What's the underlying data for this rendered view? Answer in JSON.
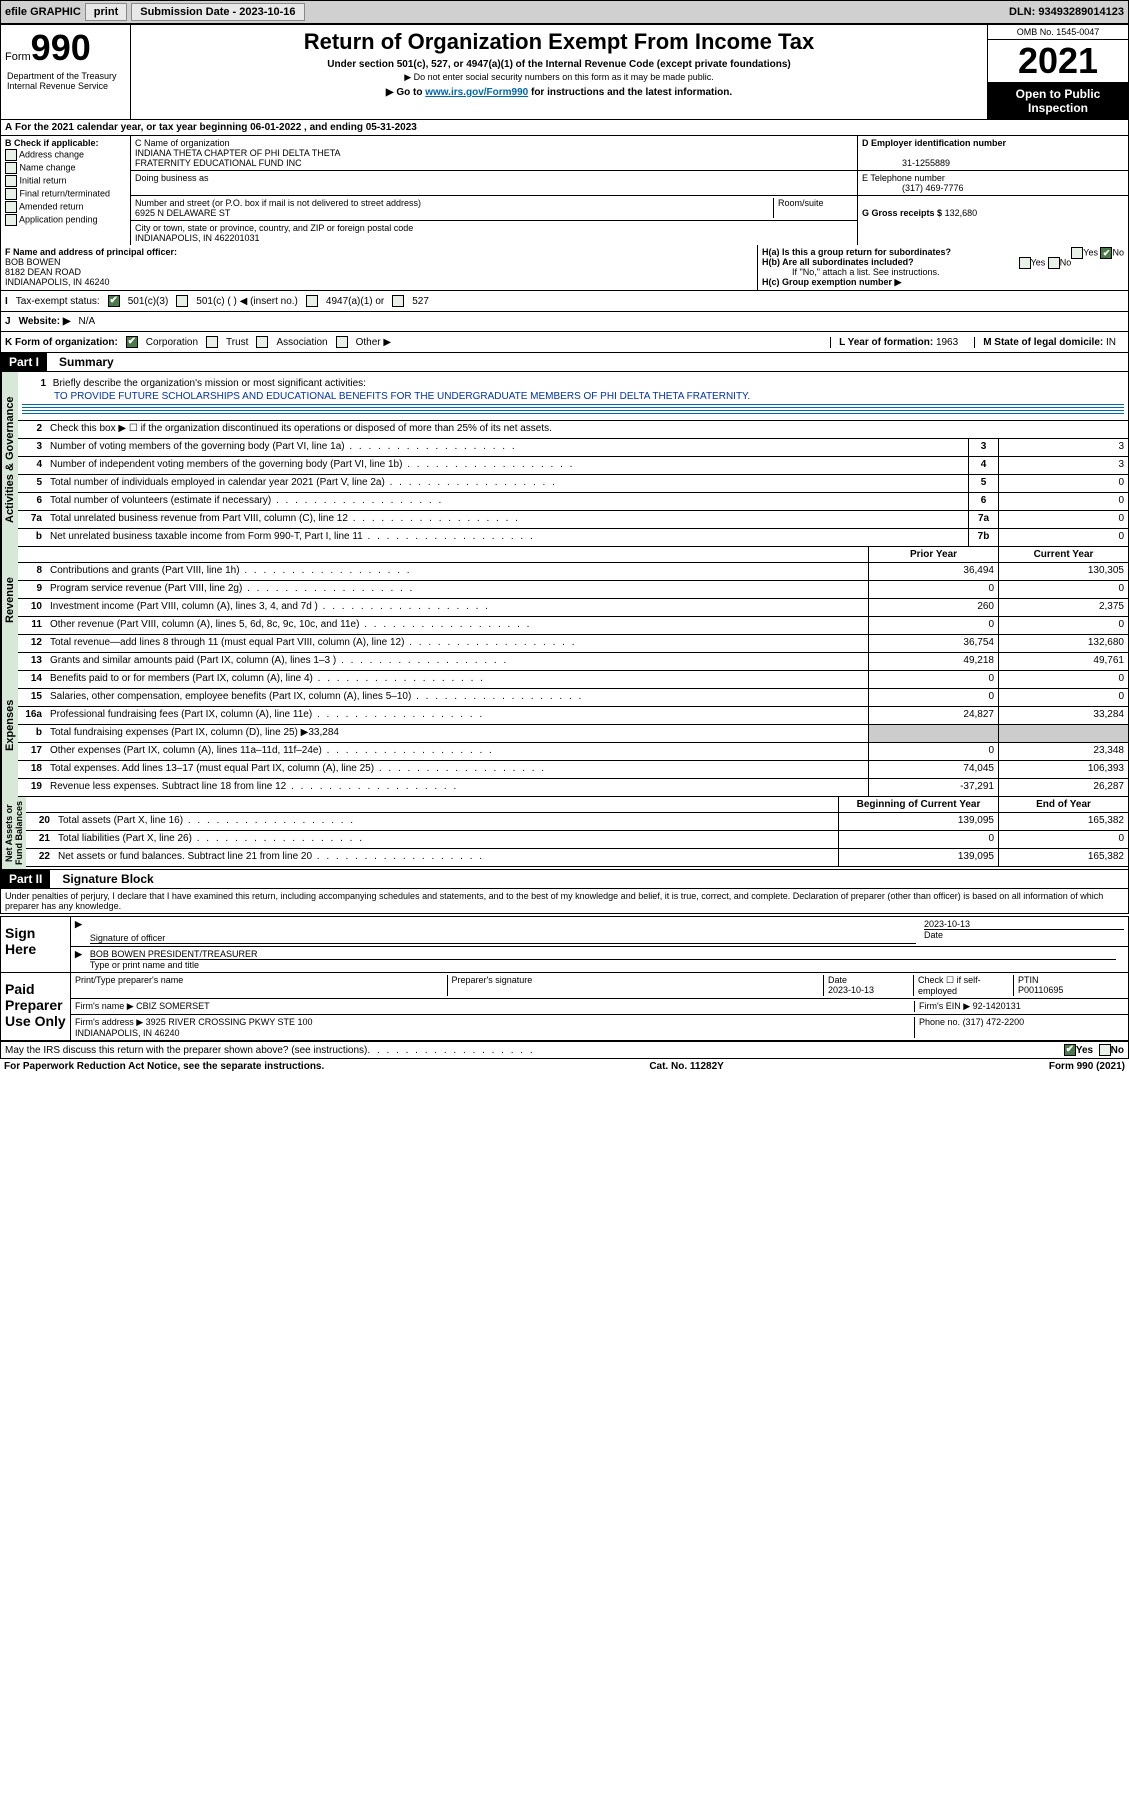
{
  "toolbar": {
    "efile": "efile GRAPHIC",
    "print": "print",
    "sub_label": "Submission Date - 2023-10-16",
    "dln": "DLN: 93493289014123"
  },
  "header": {
    "form_label": "Form",
    "form_num": "990",
    "title": "Return of Organization Exempt From Income Tax",
    "subtitle": "Under section 501(c), 527, or 4947(a)(1) of the Internal Revenue Code (except private foundations)",
    "warn1": "▶ Do not enter social security numbers on this form as it may be made public.",
    "warn2_pre": "▶ Go to ",
    "warn2_link": "www.irs.gov/Form990",
    "warn2_post": " for instructions and the latest information.",
    "omb": "OMB No. 1545-0047",
    "year": "2021",
    "inspect": "Open to Public Inspection",
    "dept": "Department of the Treasury\nInternal Revenue Service"
  },
  "a": {
    "text_pre": "For the 2021 calendar year, or tax year beginning ",
    "begin": "06-01-2022",
    "mid": " , and ending ",
    "end": "05-31-2023"
  },
  "b": {
    "label": "B Check if applicable:",
    "opts": [
      "Address change",
      "Name change",
      "Initial return",
      "Final return/terminated",
      "Amended return",
      "Application pending"
    ]
  },
  "c": {
    "name_label": "C Name of organization",
    "name": "INDIANA THETA CHAPTER OF PHI DELTA THETA\nFRATERNITY EDUCATIONAL FUND INC",
    "dba_label": "Doing business as",
    "dba": "",
    "addr_label": "Number and street (or P.O. box if mail is not delivered to street address)",
    "room_label": "Room/suite",
    "addr": "6925 N DELAWARE ST",
    "city_label": "City or town, state or province, country, and ZIP or foreign postal code",
    "city": "INDIANAPOLIS, IN  462201031"
  },
  "d": {
    "label": "D Employer identification number",
    "val": "31-1255889"
  },
  "e": {
    "label": "E Telephone number",
    "val": "(317) 469-7776"
  },
  "g": {
    "label": "G Gross receipts $",
    "val": "132,680"
  },
  "f": {
    "label": "F Name and address of principal officer:",
    "name": "BOB BOWEN",
    "addr1": "8182 DEAN ROAD",
    "addr2": "INDIANAPOLIS, IN  46240"
  },
  "h": {
    "a_label": "H(a)  Is this a group return for subordinates?",
    "a_yes": "Yes",
    "a_no": "No",
    "b_label": "H(b)  Are all subordinates included?",
    "b_note": "If \"No,\" attach a list. See instructions.",
    "c_label": "H(c)  Group exemption number ▶"
  },
  "i": {
    "label": "Tax-exempt status:",
    "c3": "501(c)(3)",
    "c": "501(c) (  ) ◀ (insert no.)",
    "a1": "4947(a)(1) or",
    "527": "527"
  },
  "j": {
    "label": "Website: ▶",
    "val": "N/A"
  },
  "k": {
    "label": "K Form of organization:",
    "corp": "Corporation",
    "trust": "Trust",
    "assoc": "Association",
    "other": "Other ▶"
  },
  "l": {
    "label": "L Year of formation:",
    "val": "1963"
  },
  "m": {
    "label": "M State of legal domicile:",
    "val": "IN"
  },
  "part1": {
    "header": "Part I",
    "title": "Summary",
    "l1_label": "Briefly describe the organization's mission or most significant activities:",
    "l1_text": "TO PROVIDE FUTURE SCHOLARSHIPS AND EDUCATIONAL BENEFITS FOR THE UNDERGRADUATE MEMBERS OF PHI DELTA THETA FRATERNITY.",
    "l2": "Check this box ▶ ☐ if the organization discontinued its operations or disposed of more than 25% of its net assets.",
    "lines_gov": [
      {
        "n": "3",
        "t": "Number of voting members of the governing body (Part VI, line 1a)",
        "b": "3",
        "v": "3"
      },
      {
        "n": "4",
        "t": "Number of independent voting members of the governing body (Part VI, line 1b)",
        "b": "4",
        "v": "3"
      },
      {
        "n": "5",
        "t": "Total number of individuals employed in calendar year 2021 (Part V, line 2a)",
        "b": "5",
        "v": "0"
      },
      {
        "n": "6",
        "t": "Total number of volunteers (estimate if necessary)",
        "b": "6",
        "v": "0"
      },
      {
        "n": "7a",
        "t": "Total unrelated business revenue from Part VIII, column (C), line 12",
        "b": "7a",
        "v": "0"
      },
      {
        "n": "b",
        "t": "Net unrelated business taxable income from Form 990-T, Part I, line 11",
        "b": "7b",
        "v": "0"
      }
    ],
    "prior_label": "Prior Year",
    "current_label": "Current Year",
    "rev": [
      {
        "n": "8",
        "t": "Contributions and grants (Part VIII, line 1h)",
        "p": "36,494",
        "c": "130,305"
      },
      {
        "n": "9",
        "t": "Program service revenue (Part VIII, line 2g)",
        "p": "0",
        "c": "0"
      },
      {
        "n": "10",
        "t": "Investment income (Part VIII, column (A), lines 3, 4, and 7d )",
        "p": "260",
        "c": "2,375"
      },
      {
        "n": "11",
        "t": "Other revenue (Part VIII, column (A), lines 5, 6d, 8c, 9c, 10c, and 11e)",
        "p": "0",
        "c": "0"
      },
      {
        "n": "12",
        "t": "Total revenue—add lines 8 through 11 (must equal Part VIII, column (A), line 12)",
        "p": "36,754",
        "c": "132,680"
      }
    ],
    "exp": [
      {
        "n": "13",
        "t": "Grants and similar amounts paid (Part IX, column (A), lines 1–3 )",
        "p": "49,218",
        "c": "49,761"
      },
      {
        "n": "14",
        "t": "Benefits paid to or for members (Part IX, column (A), line 4)",
        "p": "0",
        "c": "0"
      },
      {
        "n": "15",
        "t": "Salaries, other compensation, employee benefits (Part IX, column (A), lines 5–10)",
        "p": "0",
        "c": "0"
      },
      {
        "n": "16a",
        "t": "Professional fundraising fees (Part IX, column (A), line 11e)",
        "p": "24,827",
        "c": "33,284"
      },
      {
        "n": "b",
        "t": "Total fundraising expenses (Part IX, column (D), line 25) ▶33,284",
        "p": "",
        "c": "",
        "grey": true
      },
      {
        "n": "17",
        "t": "Other expenses (Part IX, column (A), lines 11a–11d, 11f–24e)",
        "p": "0",
        "c": "23,348"
      },
      {
        "n": "18",
        "t": "Total expenses. Add lines 13–17 (must equal Part IX, column (A), line 25)",
        "p": "74,045",
        "c": "106,393"
      },
      {
        "n": "19",
        "t": "Revenue less expenses. Subtract line 18 from line 12",
        "p": "-37,291",
        "c": "26,287"
      }
    ],
    "beg_label": "Beginning of Current Year",
    "end_label": "End of Year",
    "net": [
      {
        "n": "20",
        "t": "Total assets (Part X, line 16)",
        "p": "139,095",
        "c": "165,382"
      },
      {
        "n": "21",
        "t": "Total liabilities (Part X, line 26)",
        "p": "0",
        "c": "0"
      },
      {
        "n": "22",
        "t": "Net assets or fund balances. Subtract line 21 from line 20",
        "p": "139,095",
        "c": "165,382"
      }
    ],
    "sections": {
      "gov": "Activities & Governance",
      "rev": "Revenue",
      "exp": "Expenses",
      "net": "Net Assets or\nFund Balances"
    }
  },
  "part2": {
    "header": "Part II",
    "title": "Signature Block",
    "decl": "Under penalties of perjury, I declare that I have examined this return, including accompanying schedules and statements, and to the best of my knowledge and belief, it is true, correct, and complete. Declaration of preparer (other than officer) is based on all information of which preparer has any knowledge.",
    "sign_here": "Sign Here",
    "sig_officer": "Signature of officer",
    "sig_date_label": "Date",
    "sig_date": "2023-10-13",
    "sig_name": "BOB BOWEN  PRESIDENT/TREASURER",
    "sig_name_label": "Type or print name and title",
    "paid": "Paid Preparer Use Only",
    "prep_name_label": "Print/Type preparer's name",
    "prep_sig_label": "Preparer's signature",
    "prep_date_label": "Date",
    "prep_date": "2023-10-13",
    "prep_check": "Check ☐ if self-employed",
    "ptin_label": "PTIN",
    "ptin": "P00110695",
    "firm_name_label": "Firm's name    ▶",
    "firm_name": "CBIZ SOMERSET",
    "firm_ein_label": "Firm's EIN ▶",
    "firm_ein": "92-1420131",
    "firm_addr_label": "Firm's address ▶",
    "firm_addr": "3925 RIVER CROSSING PKWY STE 100\nINDIANAPOLIS, IN  46240",
    "firm_phone_label": "Phone no.",
    "firm_phone": "(317) 472-2200",
    "discuss": "May the IRS discuss this return with the preparer shown above? (see instructions)",
    "yes": "Yes",
    "no": "No"
  },
  "footer": {
    "left": "For Paperwork Reduction Act Notice, see the separate instructions.",
    "mid": "Cat. No. 11282Y",
    "right": "Form 990 (2021)"
  },
  "colors": {
    "toolbar_bg": "#d0d0d0",
    "check_green": "#4a7a4a",
    "section_bg": "#d8e8d8",
    "link": "#0066aa"
  }
}
